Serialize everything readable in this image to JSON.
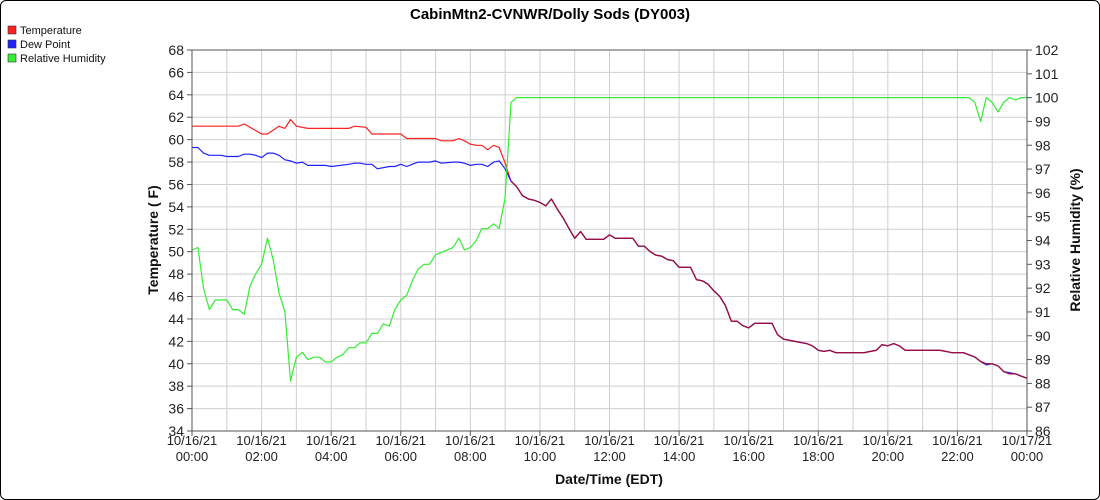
{
  "chart_data": {
    "type": "line",
    "title": "CabinMtn2-CVNWR/Dolly Sods (DY003)",
    "xlabel": "Date/Time (EDT)",
    "ylabel_left": "Temperature ( F)",
    "ylabel_right": "Relative Humidity (%)",
    "ylim_left": [
      34,
      68
    ],
    "ylim_right": [
      86,
      102
    ],
    "xlim": [
      0,
      24
    ],
    "grid": true,
    "legend_position": "top-left",
    "x_tick_labels": [
      {
        "x": 0,
        "date": "10/16/21",
        "time": "00:00"
      },
      {
        "x": 2,
        "date": "10/16/21",
        "time": "02:00"
      },
      {
        "x": 4,
        "date": "10/16/21",
        "time": "04:00"
      },
      {
        "x": 6,
        "date": "10/16/21",
        "time": "06:00"
      },
      {
        "x": 8,
        "date": "10/16/21",
        "time": "08:00"
      },
      {
        "x": 10,
        "date": "10/16/21",
        "time": "10:00"
      },
      {
        "x": 12,
        "date": "10/16/21",
        "time": "12:00"
      },
      {
        "x": 14,
        "date": "10/16/21",
        "time": "14:00"
      },
      {
        "x": 16,
        "date": "10/16/21",
        "time": "16:00"
      },
      {
        "x": 18,
        "date": "10/16/21",
        "time": "18:00"
      },
      {
        "x": 20,
        "date": "10/16/21",
        "time": "20:00"
      },
      {
        "x": 22,
        "date": "10/16/21",
        "time": "22:00"
      },
      {
        "x": 24,
        "date": "10/17/21",
        "time": "00:00"
      }
    ],
    "y_left_ticks": [
      34,
      36,
      38,
      40,
      42,
      44,
      46,
      48,
      50,
      52,
      54,
      56,
      58,
      60,
      62,
      64,
      66,
      68
    ],
    "y_right_ticks": [
      86,
      87,
      88,
      89,
      90,
      91,
      92,
      93,
      94,
      95,
      96,
      97,
      98,
      99,
      100,
      101,
      102
    ],
    "series": [
      {
        "name": "Temperature",
        "color": "#ff2020",
        "axis": "left",
        "points": [
          [
            0,
            61.2
          ],
          [
            1.33,
            61.2
          ],
          [
            1.5,
            61.4
          ],
          [
            1.67,
            61.1
          ],
          [
            2,
            60.5
          ],
          [
            2.17,
            60.5
          ],
          [
            2.5,
            61.2
          ],
          [
            2.67,
            61.0
          ],
          [
            2.83,
            61.8
          ],
          [
            3,
            61.2
          ],
          [
            3.33,
            61.0
          ],
          [
            4,
            61.0
          ],
          [
            4.5,
            61.0
          ],
          [
            4.67,
            61.2
          ],
          [
            5,
            61.1
          ],
          [
            5.17,
            60.5
          ],
          [
            6,
            60.5
          ],
          [
            6.17,
            60.1
          ],
          [
            6.67,
            60.1
          ],
          [
            7,
            60.1
          ],
          [
            7.17,
            59.9
          ],
          [
            7.5,
            59.9
          ],
          [
            7.67,
            60.1
          ],
          [
            7.83,
            59.9
          ],
          [
            8,
            59.6
          ],
          [
            8.17,
            59.5
          ],
          [
            8.33,
            59.5
          ],
          [
            8.5,
            59.1
          ],
          [
            8.67,
            59.5
          ],
          [
            8.83,
            59.3
          ],
          [
            9,
            57.9
          ],
          [
            9.17,
            56.3
          ],
          [
            9.33,
            55.8
          ],
          [
            9.5,
            55.0
          ],
          [
            9.67,
            54.7
          ],
          [
            9.83,
            54.6
          ],
          [
            10,
            54.4
          ],
          [
            10.17,
            54.1
          ],
          [
            10.33,
            54.7
          ],
          [
            10.5,
            53.8
          ],
          [
            10.67,
            53.0
          ],
          [
            10.83,
            52.1
          ],
          [
            11,
            51.2
          ],
          [
            11.17,
            51.8
          ],
          [
            11.33,
            51.1
          ],
          [
            11.67,
            51.1
          ],
          [
            11.83,
            51.1
          ],
          [
            12,
            51.5
          ],
          [
            12.17,
            51.2
          ],
          [
            12.67,
            51.2
          ],
          [
            12.83,
            50.5
          ],
          [
            13,
            50.5
          ],
          [
            13.17,
            50.0
          ],
          [
            13.33,
            49.7
          ],
          [
            13.5,
            49.6
          ],
          [
            13.67,
            49.3
          ],
          [
            13.83,
            49.2
          ],
          [
            14,
            48.6
          ],
          [
            14.33,
            48.6
          ],
          [
            14.5,
            47.5
          ],
          [
            14.67,
            47.4
          ],
          [
            14.83,
            47.1
          ],
          [
            15,
            46.5
          ],
          [
            15.17,
            46.0
          ],
          [
            15.33,
            45.2
          ],
          [
            15.5,
            43.8
          ],
          [
            15.67,
            43.8
          ],
          [
            15.83,
            43.4
          ],
          [
            16,
            43.2
          ],
          [
            16.17,
            43.6
          ],
          [
            16.67,
            43.6
          ],
          [
            16.83,
            42.6
          ],
          [
            17,
            42.2
          ],
          [
            17.33,
            42.0
          ],
          [
            17.5,
            41.9
          ],
          [
            17.67,
            41.8
          ],
          [
            17.83,
            41.6
          ],
          [
            18,
            41.2
          ],
          [
            18.17,
            41.1
          ],
          [
            18.33,
            41.2
          ],
          [
            18.5,
            41.0
          ],
          [
            19.33,
            41.0
          ],
          [
            19.5,
            41.1
          ],
          [
            19.67,
            41.2
          ],
          [
            19.83,
            41.7
          ],
          [
            20,
            41.6
          ],
          [
            20.17,
            41.8
          ],
          [
            20.33,
            41.6
          ],
          [
            20.5,
            41.2
          ],
          [
            21.5,
            41.2
          ],
          [
            21.67,
            41.1
          ],
          [
            21.83,
            41.0
          ],
          [
            22.17,
            41.0
          ],
          [
            22.33,
            40.8
          ],
          [
            22.5,
            40.6
          ],
          [
            22.67,
            40.2
          ],
          [
            22.83,
            40.0
          ],
          [
            23,
            40.0
          ],
          [
            23.17,
            39.8
          ],
          [
            23.33,
            39.3
          ],
          [
            23.5,
            39.1
          ],
          [
            23.67,
            39.1
          ],
          [
            23.83,
            38.9
          ],
          [
            24,
            38.7
          ]
        ]
      },
      {
        "name": "Dew Point",
        "color": "#2020ff",
        "axis": "left",
        "points": [
          [
            0,
            59.3
          ],
          [
            0.17,
            59.3
          ],
          [
            0.33,
            58.8
          ],
          [
            0.5,
            58.6
          ],
          [
            0.83,
            58.6
          ],
          [
            1,
            58.5
          ],
          [
            1.33,
            58.5
          ],
          [
            1.5,
            58.7
          ],
          [
            1.67,
            58.7
          ],
          [
            1.83,
            58.6
          ],
          [
            2,
            58.4
          ],
          [
            2.17,
            58.8
          ],
          [
            2.33,
            58.8
          ],
          [
            2.5,
            58.6
          ],
          [
            2.67,
            58.2
          ],
          [
            2.83,
            58.1
          ],
          [
            3,
            57.9
          ],
          [
            3.17,
            58.0
          ],
          [
            3.33,
            57.7
          ],
          [
            3.67,
            57.7
          ],
          [
            3.83,
            57.7
          ],
          [
            4,
            57.6
          ],
          [
            4.5,
            57.8
          ],
          [
            4.67,
            57.9
          ],
          [
            4.83,
            57.9
          ],
          [
            5,
            57.8
          ],
          [
            5.17,
            57.8
          ],
          [
            5.33,
            57.4
          ],
          [
            5.67,
            57.6
          ],
          [
            5.83,
            57.6
          ],
          [
            6,
            57.8
          ],
          [
            6.17,
            57.6
          ],
          [
            6.33,
            57.8
          ],
          [
            6.5,
            58.0
          ],
          [
            6.83,
            58.0
          ],
          [
            7,
            58.1
          ],
          [
            7.17,
            57.9
          ],
          [
            7.5,
            58.0
          ],
          [
            7.67,
            58.0
          ],
          [
            7.83,
            57.9
          ],
          [
            8,
            57.7
          ],
          [
            8.17,
            57.8
          ],
          [
            8.33,
            57.8
          ],
          [
            8.5,
            57.6
          ],
          [
            8.67,
            58.0
          ],
          [
            8.83,
            58.1
          ],
          [
            9,
            57.4
          ],
          [
            9.17,
            56.3
          ],
          [
            9.33,
            55.8
          ],
          [
            9.5,
            55.0
          ],
          [
            9.67,
            54.7
          ],
          [
            9.83,
            54.6
          ],
          [
            10,
            54.4
          ],
          [
            10.17,
            54.1
          ],
          [
            10.33,
            54.7
          ],
          [
            10.5,
            53.8
          ],
          [
            10.67,
            53.0
          ],
          [
            10.83,
            52.1
          ],
          [
            11,
            51.2
          ],
          [
            11.17,
            51.8
          ],
          [
            11.33,
            51.1
          ],
          [
            11.67,
            51.1
          ],
          [
            11.83,
            51.1
          ],
          [
            12,
            51.5
          ],
          [
            12.17,
            51.2
          ],
          [
            12.67,
            51.2
          ],
          [
            12.83,
            50.5
          ],
          [
            13,
            50.5
          ],
          [
            13.17,
            50.0
          ],
          [
            13.33,
            49.7
          ],
          [
            13.5,
            49.6
          ],
          [
            13.67,
            49.3
          ],
          [
            13.83,
            49.2
          ],
          [
            14,
            48.6
          ],
          [
            14.33,
            48.6
          ],
          [
            14.5,
            47.5
          ],
          [
            14.67,
            47.4
          ],
          [
            14.83,
            47.1
          ],
          [
            15,
            46.5
          ],
          [
            15.17,
            46.0
          ],
          [
            15.33,
            45.2
          ],
          [
            15.5,
            43.8
          ],
          [
            15.67,
            43.8
          ],
          [
            15.83,
            43.4
          ],
          [
            16,
            43.2
          ],
          [
            16.17,
            43.6
          ],
          [
            16.67,
            43.6
          ],
          [
            16.83,
            42.6
          ],
          [
            17,
            42.2
          ],
          [
            17.33,
            42.0
          ],
          [
            17.5,
            41.9
          ],
          [
            17.67,
            41.8
          ],
          [
            17.83,
            41.6
          ],
          [
            18,
            41.2
          ],
          [
            18.17,
            41.1
          ],
          [
            18.33,
            41.2
          ],
          [
            18.5,
            41.0
          ],
          [
            19.33,
            41.0
          ],
          [
            19.5,
            41.1
          ],
          [
            19.67,
            41.2
          ],
          [
            19.83,
            41.7
          ],
          [
            20,
            41.6
          ],
          [
            20.17,
            41.8
          ],
          [
            20.33,
            41.6
          ],
          [
            20.5,
            41.2
          ],
          [
            21.5,
            41.2
          ],
          [
            21.67,
            41.1
          ],
          [
            21.83,
            41.0
          ],
          [
            22.17,
            41.0
          ],
          [
            22.33,
            40.8
          ],
          [
            22.5,
            40.6
          ],
          [
            22.67,
            40.2
          ],
          [
            22.83,
            39.9
          ],
          [
            23,
            40.0
          ],
          [
            23.17,
            39.8
          ],
          [
            23.33,
            39.3
          ],
          [
            23.5,
            39.2
          ],
          [
            23.67,
            39.1
          ],
          [
            23.83,
            38.9
          ],
          [
            24,
            38.7
          ]
        ]
      },
      {
        "name": "Relative Humidity",
        "color": "#33ee33",
        "axis": "right",
        "points": [
          [
            0,
            93.6
          ],
          [
            0.17,
            93.7
          ],
          [
            0.33,
            92.0
          ],
          [
            0.5,
            91.1
          ],
          [
            0.67,
            91.5
          ],
          [
            0.83,
            91.5
          ],
          [
            1,
            91.5
          ],
          [
            1.17,
            91.1
          ],
          [
            1.33,
            91.1
          ],
          [
            1.5,
            90.9
          ],
          [
            1.67,
            92.1
          ],
          [
            1.83,
            92.6
          ],
          [
            2,
            93.0
          ],
          [
            2.17,
            94.1
          ],
          [
            2.33,
            93.2
          ],
          [
            2.5,
            91.8
          ],
          [
            2.67,
            91.0
          ],
          [
            2.83,
            88.1
          ],
          [
            3,
            89.1
          ],
          [
            3.17,
            89.3
          ],
          [
            3.33,
            89.0
          ],
          [
            3.5,
            89.1
          ],
          [
            3.67,
            89.1
          ],
          [
            3.83,
            88.9
          ],
          [
            4,
            88.9
          ],
          [
            4.17,
            89.1
          ],
          [
            4.33,
            89.2
          ],
          [
            4.5,
            89.5
          ],
          [
            4.67,
            89.5
          ],
          [
            4.83,
            89.7
          ],
          [
            5,
            89.7
          ],
          [
            5.17,
            90.1
          ],
          [
            5.33,
            90.1
          ],
          [
            5.5,
            90.5
          ],
          [
            5.67,
            90.4
          ],
          [
            5.83,
            91.1
          ],
          [
            6,
            91.5
          ],
          [
            6.17,
            91.7
          ],
          [
            6.33,
            92.3
          ],
          [
            6.5,
            92.8
          ],
          [
            6.67,
            93.0
          ],
          [
            6.83,
            93.0
          ],
          [
            7,
            93.4
          ],
          [
            7.17,
            93.5
          ],
          [
            7.5,
            93.7
          ],
          [
            7.67,
            94.1
          ],
          [
            7.83,
            93.6
          ],
          [
            8,
            93.7
          ],
          [
            8.17,
            94.0
          ],
          [
            8.33,
            94.5
          ],
          [
            8.5,
            94.5
          ],
          [
            8.67,
            94.7
          ],
          [
            8.83,
            94.5
          ],
          [
            9,
            95.8
          ],
          [
            9.17,
            99.8
          ],
          [
            9.33,
            100.0
          ],
          [
            12,
            100.0
          ],
          [
            16,
            100.0
          ],
          [
            20,
            100.0
          ],
          [
            22.33,
            100.0
          ],
          [
            22.5,
            99.8
          ],
          [
            22.67,
            99.0
          ],
          [
            22.83,
            100.0
          ],
          [
            23,
            99.8
          ],
          [
            23.17,
            99.4
          ],
          [
            23.33,
            99.8
          ],
          [
            23.5,
            100.0
          ],
          [
            23.67,
            99.9
          ],
          [
            23.83,
            100.0
          ],
          [
            24,
            100.0
          ]
        ]
      }
    ]
  }
}
